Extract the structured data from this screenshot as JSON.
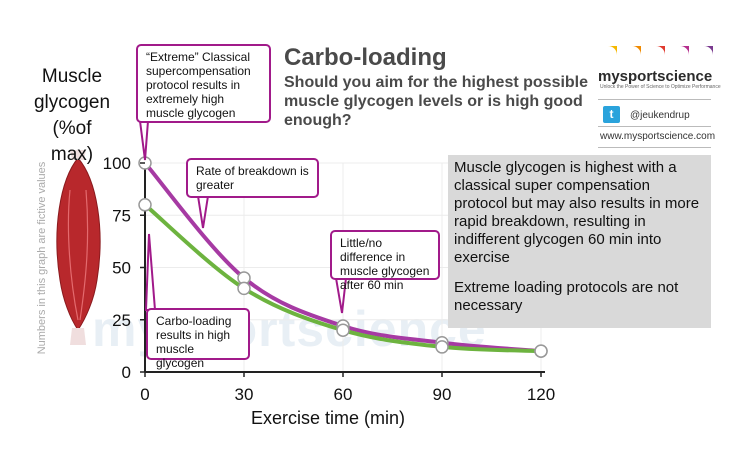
{
  "chart_data": {
    "type": "line",
    "title": "Carbo-loading",
    "subtitle": "Should you aim for the highest possible muscle glycogen levels or is high good enough?",
    "xlabel": "Exercise time (min)",
    "ylabel": "Muscle glycogen (%of max)",
    "x_ticks": [
      0,
      30,
      60,
      90,
      120
    ],
    "y_ticks": [
      0,
      25,
      50,
      75,
      100
    ],
    "xlim": [
      0,
      120
    ],
    "ylim": [
      0,
      100
    ],
    "series": [
      {
        "name": "Extreme classical supercompensation",
        "color": "#a63aa3",
        "x": [
          0,
          30,
          60,
          90,
          120
        ],
        "values": [
          100,
          45,
          22,
          14,
          10
        ]
      },
      {
        "name": "Carbo-loading",
        "color": "#6db33f",
        "x": [
          0,
          30,
          60,
          90,
          120
        ],
        "values": [
          80,
          40,
          20,
          12,
          10
        ]
      }
    ],
    "annotations": [
      "“Extreme” Classical supercompensation protocol results in extremely high muscle glycogen",
      "Rate of breakdown is greater",
      "Little/no difference in muscle glycogen after 60 min",
      "Carbo-loading results in high muscle glycogen"
    ],
    "note": "Numbers in this graph are fictive values"
  },
  "labels": {
    "ylabel_lines": [
      "Muscle",
      "glycogen",
      "(%of max)"
    ],
    "callout_extreme": "“Extreme” Classical supercompensation protocol results in extremely high muscle glycogen",
    "callout_rate": "Rate of breakdown is greater",
    "callout_diff": "Little/no difference in muscle glycogen after 60 min",
    "callout_carbo": "Carbo-loading results in high muscle glycogen",
    "info_p1": "Muscle glycogen is highest with a classical super compensation protocol but may also results in more rapid breakdown, resulting in indifferent glycogen 60 min into exercise",
    "info_p2": "Extreme loading protocols are not necessary",
    "vertical_note": "Numbers in this graph are fictive values"
  },
  "brand": {
    "name": "mysportscience",
    "tagline": "Unlock the Power of Science to Optimize Performance",
    "twitter_handle": "@jeukendrup",
    "website": "www.mysportscience.com",
    "twitter_glyph": "t",
    "dot_colors": [
      "#f5b800",
      "#f08a00",
      "#e03a2f",
      "#b52f8e",
      "#7a3a8f"
    ]
  },
  "watermark": "mysportscience"
}
